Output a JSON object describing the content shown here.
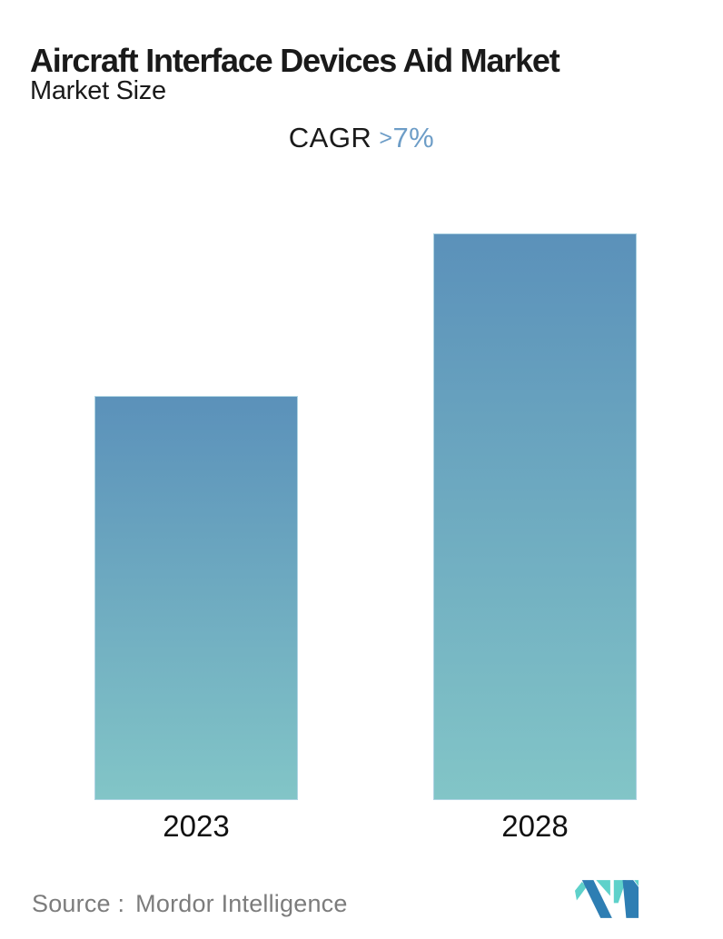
{
  "header": {
    "title": "Aircraft Interface Devices Aid Market",
    "subtitle": "Market Size",
    "cagr_label": "CAGR",
    "cagr_prefix": ">",
    "cagr_value": "7%"
  },
  "chart_data": {
    "type": "bar",
    "title": "Aircraft Interface Devices Aid Market",
    "subtitle": "Market Size",
    "annotation": "CAGR >7%",
    "categories": [
      "2023",
      "2028"
    ],
    "series": [
      {
        "name": "Market Size",
        "relative_values": [
          0.713,
          1.0
        ]
      }
    ],
    "values_note": "No value axis shown; bar heights read from pixels, 2023 is ~71% of 2028 (consistent with CAGR >7% over 5 years)",
    "xlabel": "",
    "ylabel": "",
    "value_axis_visible": false,
    "gridlines": false,
    "legend": false,
    "bar_gradient_top": "#5b91ba",
    "bar_gradient_bottom": "#82c5c7"
  },
  "footer": {
    "source_label": "Source :",
    "source_name": "Mordor Intelligence"
  },
  "colors": {
    "accent_blue": "#6d9dc7",
    "text_dark": "#1a1a1a",
    "text_gray": "#7c7c7c",
    "logo_teal": "#5ed1ca",
    "logo_blue": "#2e7eb3"
  }
}
